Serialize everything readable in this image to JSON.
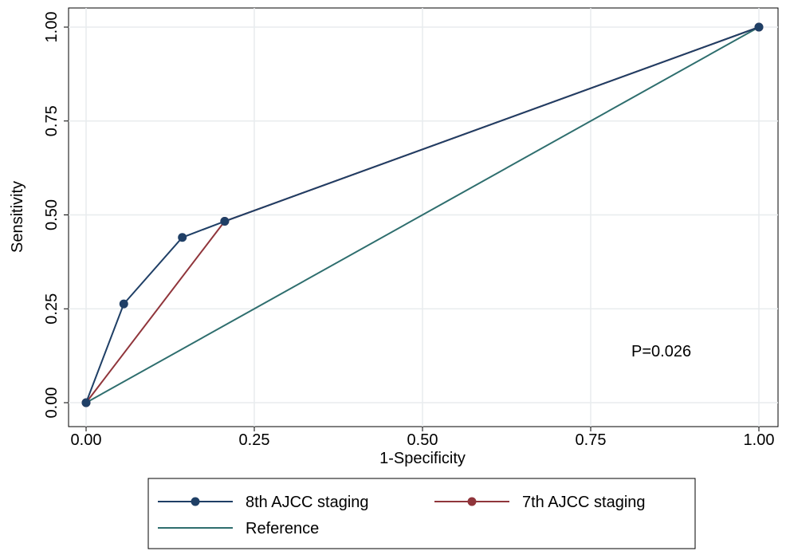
{
  "chart_data": {
    "type": "line",
    "title": "",
    "xlabel": "1-Specificity",
    "ylabel": "Sensitivity",
    "xlim": [
      0,
      1
    ],
    "ylim": [
      0,
      1
    ],
    "xticks": [
      "0.00",
      "0.25",
      "0.50",
      "0.75",
      "1.00"
    ],
    "yticks": [
      "0.00",
      "0.25",
      "0.50",
      "0.75",
      "1.00"
    ],
    "grid": true,
    "legend_position": "bottom",
    "annotation": "P=0.026",
    "series": [
      {
        "name": "8th AJCC staging",
        "color": "#1f3f66",
        "markers": true,
        "x": [
          0,
          0.056,
          0.143,
          0.206,
          1
        ],
        "y": [
          0,
          0.263,
          0.44,
          0.483,
          1
        ]
      },
      {
        "name": "7th AJCC staging",
        "color": "#90353b",
        "markers": true,
        "x": [
          0,
          0.206,
          1
        ],
        "y": [
          0,
          0.483,
          1
        ]
      },
      {
        "name": "Reference",
        "color": "#2e6e6e",
        "markers": false,
        "x": [
          0,
          1
        ],
        "y": [
          0,
          1
        ]
      }
    ]
  }
}
